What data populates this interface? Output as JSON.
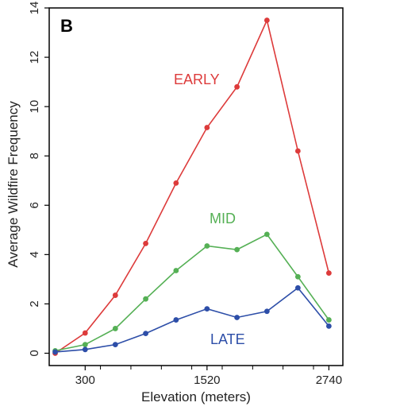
{
  "chart_data": {
    "type": "line",
    "panel_label": "B",
    "xlabel": "Elevation (meters)",
    "ylabel": "Average Wildfire Frequency",
    "x": [
      76,
      300,
      453,
      758,
      1063,
      1367,
      1672,
      1977,
      2281,
      2586,
      2740
    ],
    "x_ticks": [
      300,
      1520,
      2740
    ],
    "x_minor_ticks": [
      453,
      758,
      1063,
      1367,
      1672,
      1977,
      2281,
      2586
    ],
    "xlim": [
      -60,
      2880
    ],
    "ylim": [
      -0.5,
      14
    ],
    "y_ticks": [
      0,
      2,
      4,
      6,
      8,
      10,
      12,
      14
    ],
    "series": [
      {
        "name": "EARLY",
        "color": "#dd3b3b",
        "x": [
          0,
          300,
          602,
          906,
          1210,
          1520,
          1820,
          2120,
          2430,
          2740
        ],
        "values": [
          0.0,
          0.82,
          2.35,
          4.45,
          6.9,
          9.15,
          10.8,
          13.5,
          8.2,
          3.25
        ]
      },
      {
        "name": "MID",
        "color": "#55b055",
        "x": [
          0,
          300,
          602,
          906,
          1210,
          1520,
          1820,
          2120,
          2430,
          2740
        ],
        "values": [
          0.1,
          0.35,
          1.0,
          2.2,
          3.35,
          4.35,
          4.2,
          4.82,
          3.1,
          1.35
        ]
      },
      {
        "name": "LATE",
        "color": "#2d4ea8",
        "x": [
          0,
          300,
          602,
          906,
          1210,
          1520,
          1820,
          2120,
          2430,
          2740
        ],
        "values": [
          0.05,
          0.15,
          0.35,
          0.8,
          1.35,
          1.8,
          1.45,
          1.7,
          2.65,
          1.1
        ]
      }
    ],
    "grid": false,
    "legend": "inline labels"
  }
}
